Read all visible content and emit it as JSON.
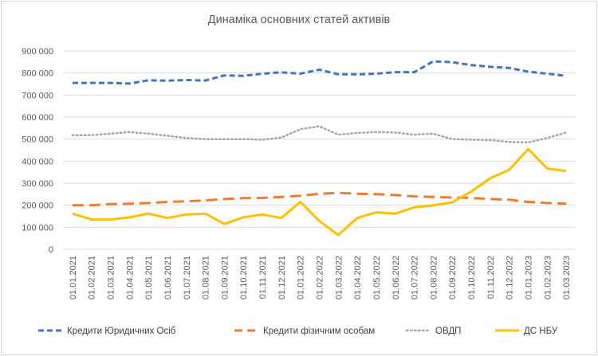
{
  "chart_data": {
    "type": "line",
    "title": "Динаміка основних статей активів",
    "xlabel": "",
    "ylabel": "",
    "ylim": [
      0,
      900000
    ],
    "yticks": [
      0,
      100000,
      200000,
      300000,
      400000,
      500000,
      600000,
      700000,
      800000,
      900000
    ],
    "ytick_labels": [
      "0",
      "100 000",
      "200 000",
      "300 000",
      "400 000",
      "500 000",
      "600 000",
      "700 000",
      "800 000",
      "900 000"
    ],
    "grid": true,
    "legend_position": "bottom",
    "categories": [
      "01.01.2021",
      "01.02.2021",
      "01.03.2021",
      "01.04.2021",
      "01.05.2021",
      "01.06.2021",
      "01.07.2021",
      "01.08.2021",
      "01.09.2021",
      "01.10.2021",
      "01.11.2021",
      "01.12.2021",
      "01.01.2022",
      "01.02.2022",
      "01.03.2022",
      "01.04.2022",
      "01.05.2022",
      "01.06.2022",
      "01.07.2022",
      "01.08.2022",
      "01.09.2022",
      "01.10.2022",
      "01.11.2022",
      "01.12.2022",
      "01.01.2023",
      "01.02.2023",
      "01.03.2023"
    ],
    "series": [
      {
        "name": "Кредити Юридичних Осіб",
        "color": "#4472c4",
        "style": "dashed",
        "values": [
          755000,
          755000,
          755000,
          752000,
          767000,
          765000,
          768000,
          766000,
          789000,
          787000,
          797000,
          803000,
          797000,
          815000,
          794000,
          794000,
          797000,
          804000,
          804000,
          853000,
          849000,
          836000,
          828000,
          823000,
          806000,
          797000,
          787000
        ]
      },
      {
        "name": "Кредити фізичним особам",
        "color": "#ed7d31",
        "style": "longdash",
        "values": [
          200000,
          200000,
          205000,
          207000,
          210000,
          215000,
          218000,
          222000,
          228000,
          232000,
          233000,
          238000,
          243000,
          252000,
          256000,
          252000,
          250000,
          246000,
          240000,
          238000,
          235000,
          233000,
          228000,
          225000,
          215000,
          210000,
          207000
        ]
      },
      {
        "name": "ОВДП",
        "color": "#a5a5a5",
        "style": "dotted",
        "values": [
          518000,
          518000,
          525000,
          532000,
          525000,
          515000,
          505000,
          500000,
          500000,
          500000,
          497000,
          507000,
          545000,
          558000,
          520000,
          528000,
          532000,
          530000,
          520000,
          525000,
          500000,
          497000,
          495000,
          487000,
          485000,
          505000,
          530000
        ]
      },
      {
        "name": "ДС НБУ",
        "color": "#ffc000",
        "style": "solid",
        "values": [
          162000,
          135000,
          135000,
          145000,
          162000,
          142000,
          158000,
          162000,
          115000,
          145000,
          158000,
          142000,
          215000,
          128000,
          65000,
          142000,
          168000,
          162000,
          190000,
          200000,
          213000,
          262000,
          322000,
          360000,
          455000,
          367000,
          355000
        ]
      }
    ]
  }
}
